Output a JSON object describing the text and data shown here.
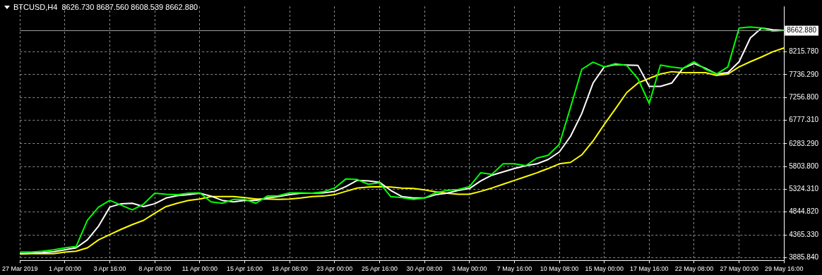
{
  "chart_data": {
    "type": "line",
    "title": "BTCUSD,H4  8626.730 8687.560 8608.539 8662.880",
    "categories": [
      "27 Mar 2019",
      null,
      null,
      null,
      "1 Apr 00:00",
      null,
      null,
      null,
      "3 Apr 16:00",
      null,
      null,
      null,
      "8 Apr 08:00",
      null,
      null,
      null,
      "11 Apr 00:00",
      null,
      null,
      null,
      "15 Apr 16:00",
      null,
      null,
      null,
      "18 Apr 08:00",
      null,
      null,
      null,
      "23 Apr 00:00",
      null,
      null,
      null,
      "25 Apr 16:00",
      null,
      null,
      null,
      "30 Apr 08:00",
      null,
      null,
      null,
      "3 May 00:00",
      null,
      null,
      null,
      "7 May 16:00",
      null,
      null,
      null,
      "10 May 08:00",
      null,
      null,
      null,
      "15 May 00:00",
      null,
      null,
      null,
      "17 May 16:00",
      null,
      null,
      null,
      "22 May 08:00",
      null,
      null,
      null,
      "27 May 00:00",
      null,
      null,
      null,
      "29 May 16:00"
    ],
    "series": [
      {
        "color": "#00ff00",
        "values": [
          4000,
          4000,
          4020,
          4050,
          4090,
          4120,
          4670,
          4950,
          5090,
          4990,
          4890,
          5010,
          5240,
          5220,
          5210,
          5240,
          5250,
          5060,
          5030,
          5110,
          5110,
          5030,
          5180,
          5190,
          5250,
          5250,
          5240,
          5270,
          5350,
          5540,
          5530,
          5430,
          5460,
          5170,
          5150,
          5110,
          5140,
          5250,
          5300,
          5320,
          5380,
          5670,
          5640,
          5860,
          5860,
          5820,
          5980,
          6040,
          6270,
          7050,
          7850,
          8000,
          7900,
          7970,
          7930,
          7650,
          7130,
          7940,
          7900,
          7870,
          8010,
          7850,
          7750,
          7900,
          8720,
          8740,
          8720,
          8650,
          8670
        ]
      },
      {
        "color": "#ffffff",
        "values": [
          3970,
          3980,
          3990,
          4010,
          4050,
          4090,
          4260,
          4550,
          4950,
          5020,
          5030,
          4960,
          5020,
          5140,
          5190,
          5210,
          5240,
          5180,
          5090,
          5060,
          5090,
          5090,
          5140,
          5170,
          5210,
          5240,
          5240,
          5250,
          5280,
          5380,
          5510,
          5500,
          5470,
          5300,
          5170,
          5140,
          5140,
          5210,
          5240,
          5300,
          5340,
          5500,
          5620,
          5690,
          5760,
          5820,
          5860,
          5950,
          6110,
          6440,
          6920,
          7560,
          7900,
          7950,
          7940,
          7930,
          7490,
          7490,
          7560,
          7870,
          7970,
          7870,
          7750,
          7780,
          8010,
          8510,
          8720,
          8680,
          8670
        ]
      },
      {
        "color": "#ffff00",
        "values": [
          3960,
          3970,
          3970,
          3970,
          4000,
          4020,
          4090,
          4260,
          4370,
          4480,
          4580,
          4670,
          4820,
          4960,
          5030,
          5090,
          5120,
          5170,
          5170,
          5170,
          5150,
          5120,
          5120,
          5110,
          5120,
          5140,
          5170,
          5180,
          5210,
          5280,
          5350,
          5370,
          5380,
          5370,
          5350,
          5340,
          5310,
          5270,
          5240,
          5220,
          5220,
          5280,
          5350,
          5430,
          5510,
          5590,
          5670,
          5760,
          5860,
          5890,
          6050,
          6340,
          6690,
          7020,
          7360,
          7560,
          7660,
          7750,
          7800,
          7780,
          7780,
          7780,
          7720,
          7750,
          7900,
          8010,
          8110,
          8220,
          8300
        ]
      }
    ],
    "ylim": [
      3828,
      9175
    ],
    "yticks": [
      {
        "value": 3885.84,
        "label": "3885.840"
      },
      {
        "value": 4365.33,
        "label": "4365.330"
      },
      {
        "value": 4844.82,
        "label": "4844.820"
      },
      {
        "value": 5324.31,
        "label": "5324.310"
      },
      {
        "value": 5803.8,
        "label": "5803.800"
      },
      {
        "value": 6283.29,
        "label": "6283.290"
      },
      {
        "value": 6777.31,
        "label": "6777.310"
      },
      {
        "value": 7256.8,
        "label": "7256.800"
      },
      {
        "value": 7736.29,
        "label": "7736.290"
      },
      {
        "value": 8215.78,
        "label": "8215.780"
      }
    ],
    "ref_lines": [
      {
        "axis": "y",
        "value": 8662.88,
        "label": "8662.880",
        "color": "#a0a0a0"
      }
    ],
    "grid": true,
    "legend": false,
    "marker": "none",
    "line_style": "solid"
  }
}
